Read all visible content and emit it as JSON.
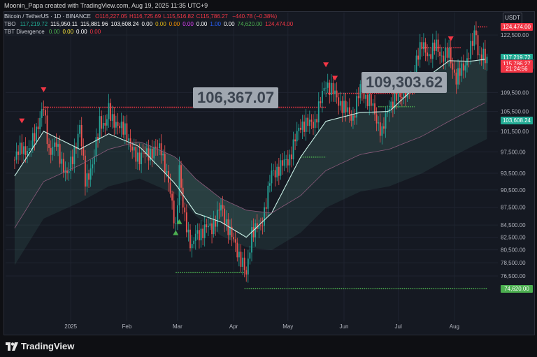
{
  "caption": "Moonin_Papa created with TradingView.com, Aug 19, 2025 11:35 UTC+9",
  "currency": "USDT",
  "symbol": {
    "title": "Bitcoin / TetherUS · 1D · BINANCE",
    "ohlc": [
      {
        "text": "O116,227.05",
        "color": "#f23645"
      },
      {
        "text": "H116,725.69",
        "color": "#f23645"
      },
      {
        "text": "L115,516.82",
        "color": "#f23645"
      },
      {
        "text": "C115,786.27",
        "color": "#f23645"
      },
      {
        "text": "−440.78 (−0.38%)",
        "color": "#f23645"
      }
    ]
  },
  "tbo": {
    "label": "TBO",
    "values": [
      {
        "text": "117,219.72",
        "color": "#22ab94"
      },
      {
        "text": "115,950.11",
        "color": "#ffffff"
      },
      {
        "text": "115,881.96",
        "color": "#ffffff"
      },
      {
        "text": "103,608.24",
        "color": "#ffffff"
      },
      {
        "text": "0.00",
        "color": "#ffffff"
      },
      {
        "text": "0.00",
        "color": "#e2b714"
      },
      {
        "text": "0.00",
        "color": "#ff9800"
      },
      {
        "text": "0.00",
        "color": "#e040fb"
      },
      {
        "text": "0.00",
        "color": "#ffffff"
      },
      {
        "text": "1.00",
        "color": "#2962ff"
      },
      {
        "text": "0.00",
        "color": "#ffffff"
      },
      {
        "text": "74,620.00",
        "color": "#4caf50"
      },
      {
        "text": "124,474.00",
        "color": "#f23645"
      }
    ]
  },
  "divergence": {
    "label": "TBT Divergence",
    "values": [
      {
        "text": "0.00",
        "color": "#4caf50"
      },
      {
        "text": "0.00",
        "color": "#ffeb3b"
      },
      {
        "text": "0.00",
        "color": "#ffffff"
      },
      {
        "text": "0.00",
        "color": "#f23645"
      }
    ]
  },
  "annotations": [
    {
      "text": "106,367.07",
      "price": 106367.07,
      "date": "2024-12-17"
    },
    {
      "text": "109,303.62",
      "price": 109303.62,
      "date": "2025-05-22"
    }
  ],
  "price_labels": [
    {
      "text": "124,474.00",
      "price": 124474,
      "color": "#f23645"
    },
    {
      "text": "117,219.72",
      "price": 117219.72,
      "color": "#22ab94"
    },
    {
      "text": "115,950.11",
      "price": 115950.11,
      "color": "#1a1e28"
    },
    {
      "text": "115,881.96",
      "price": 115881.96,
      "color": "#1a1e28"
    },
    {
      "text": "115,786.27",
      "price": 115786.27,
      "color": "#f23645"
    },
    {
      "text": "21:24:56",
      "price": 114700,
      "color": "#f23645"
    },
    {
      "text": "103,608.24",
      "price": 103608.24,
      "color": "#22ab94"
    },
    {
      "text": "74,620.00",
      "price": 74620,
      "color": "#4caf50"
    }
  ],
  "footer": {
    "brand": "TradingView"
  },
  "colors": {
    "up": "#26a69a",
    "down": "#ef5350",
    "support": "#4caf50",
    "resistance": "#f23645"
  },
  "chart_data": {
    "type": "candlestick",
    "title": "Bitcoin / TetherUS · 1D · BINANCE",
    "x_ticks": [
      "2025",
      "Feb",
      "Mar",
      "Apr",
      "May",
      "Jun",
      "Jul",
      "Aug"
    ],
    "y_ticks": [
      "122,500.00",
      "109,500.00",
      "105,500.00",
      "101,500.00",
      "97,500.00",
      "93,500.00",
      "90,500.00",
      "87,500.00",
      "84,500.00",
      "82,500.00",
      "80,500.00",
      "78,500.00",
      "76,500.00"
    ],
    "y_scale": "log",
    "ylim": [
      70000,
      128000
    ],
    "resistance_levels": [
      {
        "price": 106367.07,
        "from": "2024-12-17",
        "to": "2025-05-22"
      },
      {
        "price": 109303.62,
        "from": "2025-05-22",
        "to": "2025-07-10"
      },
      {
        "price": 124474.0,
        "from": "2025-08-14",
        "to": "2025-08-19"
      },
      {
        "price": 119500,
        "from": "2025-07-14",
        "to": "2025-08-05"
      }
    ],
    "support_levels": [
      {
        "price": 74620.0,
        "from": "2025-04-07",
        "to": "2025-08-19"
      },
      {
        "price": 77000,
        "from": "2025-02-28",
        "to": "2025-04-07"
      },
      {
        "price": 96500,
        "from": "2025-05-08",
        "to": "2025-05-22"
      },
      {
        "price": 106500,
        "from": "2025-06-20",
        "to": "2025-07-10"
      }
    ],
    "closes": [
      [
        "2024-12-01",
        96000
      ],
      [
        "2024-12-05",
        98500
      ],
      [
        "2024-12-09",
        97300
      ],
      [
        "2024-12-12",
        101000
      ],
      [
        "2024-12-17",
        106100
      ],
      [
        "2024-12-20",
        97800
      ],
      [
        "2024-12-24",
        98700
      ],
      [
        "2024-12-30",
        92800
      ],
      [
        "2025-01-06",
        102000
      ],
      [
        "2025-01-09",
        92500
      ],
      [
        "2025-01-13",
        94500
      ],
      [
        "2025-01-17",
        104000
      ],
      [
        "2025-01-20",
        102000
      ],
      [
        "2025-01-22",
        106000
      ],
      [
        "2025-01-27",
        102000
      ],
      [
        "2025-01-31",
        102500
      ],
      [
        "2025-02-03",
        98000
      ],
      [
        "2025-02-08",
        96500
      ],
      [
        "2025-02-14",
        97500
      ],
      [
        "2025-02-20",
        98300
      ],
      [
        "2025-02-24",
        91500
      ],
      [
        "2025-02-28",
        84300
      ],
      [
        "2025-03-02",
        94200
      ],
      [
        "2025-03-04",
        87200
      ],
      [
        "2025-03-09",
        80700
      ],
      [
        "2025-03-11",
        82800
      ],
      [
        "2025-03-17",
        84000
      ],
      [
        "2025-03-20",
        84200
      ],
      [
        "2025-03-25",
        87500
      ],
      [
        "2025-03-31",
        82500
      ],
      [
        "2025-04-06",
        78400
      ],
      [
        "2025-04-08",
        76300
      ],
      [
        "2025-04-11",
        83700
      ],
      [
        "2025-04-16",
        84000
      ],
      [
        "2025-04-22",
        93400
      ],
      [
        "2025-04-28",
        95000
      ],
      [
        "2025-05-02",
        96500
      ],
      [
        "2025-05-08",
        103000
      ],
      [
        "2025-05-12",
        102800
      ],
      [
        "2025-05-16",
        103500
      ],
      [
        "2025-05-22",
        111700
      ],
      [
        "2025-05-27",
        108900
      ],
      [
        "2025-06-02",
        105700
      ],
      [
        "2025-06-06",
        104300
      ],
      [
        "2025-06-10",
        110200
      ],
      [
        "2025-06-16",
        107100
      ],
      [
        "2025-06-22",
        101000
      ],
      [
        "2025-06-26",
        107000
      ],
      [
        "2025-07-02",
        108800
      ],
      [
        "2025-07-09",
        111300
      ],
      [
        "2025-07-11",
        117500
      ],
      [
        "2025-07-14",
        119800
      ],
      [
        "2025-07-18",
        117900
      ],
      [
        "2025-07-22",
        119900
      ],
      [
        "2025-07-25",
        117600
      ],
      [
        "2025-07-29",
        117900
      ],
      [
        "2025-08-02",
        112500
      ],
      [
        "2025-08-06",
        115000
      ],
      [
        "2025-08-10",
        119300
      ],
      [
        "2025-08-13",
        123300
      ],
      [
        "2025-08-14",
        118300
      ],
      [
        "2025-08-17",
        117500
      ],
      [
        "2025-08-19",
        115786.27
      ]
    ],
    "bands": {
      "fast": [
        [
          "2024-12-01",
          93000
        ],
        [
          "2024-12-17",
          101500
        ],
        [
          "2025-01-06",
          98000
        ],
        [
          "2025-01-22",
          101000
        ],
        [
          "2025-02-08",
          98500
        ],
        [
          "2025-02-28",
          91500
        ],
        [
          "2025-03-11",
          86500
        ],
        [
          "2025-03-25",
          85000
        ],
        [
          "2025-04-08",
          82500
        ],
        [
          "2025-04-22",
          86500
        ],
        [
          "2025-05-08",
          96500
        ],
        [
          "2025-05-22",
          103500
        ],
        [
          "2025-06-10",
          105300
        ],
        [
          "2025-06-26",
          105500
        ],
        [
          "2025-07-14",
          112000
        ],
        [
          "2025-07-29",
          116500
        ],
        [
          "2025-08-10",
          116400
        ],
        [
          "2025-08-19",
          116900
        ]
      ],
      "slow": [
        [
          "2024-12-01",
          84000
        ],
        [
          "2024-12-17",
          92000
        ],
        [
          "2025-01-06",
          95000
        ],
        [
          "2025-01-22",
          98000
        ],
        [
          "2025-02-08",
          99500
        ],
        [
          "2025-02-28",
          96500
        ],
        [
          "2025-03-11",
          92500
        ],
        [
          "2025-03-25",
          89000
        ],
        [
          "2025-04-08",
          87000
        ],
        [
          "2025-04-22",
          86500
        ],
        [
          "2025-05-08",
          89500
        ],
        [
          "2025-05-22",
          94000
        ],
        [
          "2025-06-10",
          97000
        ],
        [
          "2025-06-26",
          98000
        ],
        [
          "2025-07-14",
          100500
        ],
        [
          "2025-07-29",
          103500
        ],
        [
          "2025-08-10",
          105800
        ],
        [
          "2025-08-19",
          107500
        ]
      ]
    }
  }
}
